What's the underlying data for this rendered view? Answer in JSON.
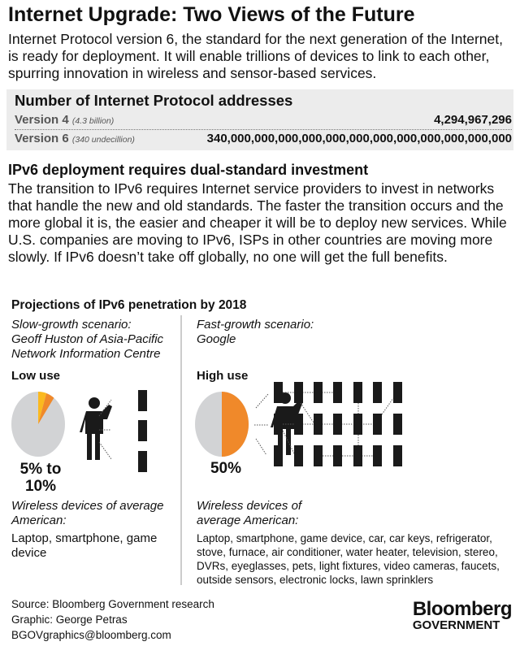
{
  "title": "Internet Upgrade: Two Views of the Future",
  "intro": "Internet Protocol version 6, the standard for the next generation of the Internet, is ready for deployment. It will enable trillions of devices to link to each other, spurring innovation in wireless and sensor-based services.",
  "addresses": {
    "heading": "Number of Internet Protocol addresses",
    "rows": [
      {
        "label": "Version 4",
        "note": "(4.3 billion)",
        "value": "4,294,967,296"
      },
      {
        "label": "Version 6",
        "note": "(340 undecillion)",
        "value": "340,000,000,000,000,000,000,000,000,000,000,000,000"
      }
    ]
  },
  "section": {
    "heading": "IPv6 deployment requires dual-standard investment",
    "body": "The transition to IPv6 requires Internet service providers to invest in networks that handle the new and old standards. The faster the transition occurs and the more global it is, the easier and cheaper it will be to deploy new services. While U.S. companies are moving to IPv6, ISPs in other countries are moving more slowly. If IPv6 doesn’t take off globally, no one will get the full benefits."
  },
  "projections": {
    "heading": "Projections of IPv6 penetration by 2018",
    "slow": {
      "scenario": "Slow-growth scenario:",
      "source": "Geoff Huston of Asia-Pacific Network Information Centre",
      "label": "Low use",
      "percent": "5% to 10%",
      "range": [
        5,
        10
      ],
      "devices_label": "Wireless devices of average American:",
      "devices": "Laptop, smartphone, game device",
      "device_count": 3
    },
    "fast": {
      "scenario": "Fast-growth scenario:",
      "source": "Google",
      "label": "High use",
      "percent": "50%",
      "value": 50,
      "devices_label": "Wireless devices of average American:",
      "devices": "Laptop, smartphone, game device, car, car keys, refrigerator, stove, furnace, air conditioner, water heater, television, stereo, DVRs, eyeglasses, pets, light fixtures, video cameras, faucets, outside sensors, electronic locks, lawn sprinklers",
      "device_count": 21
    }
  },
  "colors": {
    "orange": "#f0892a",
    "yellow": "#fbb91f",
    "gray": "#d2d3d5",
    "box": "#ececec"
  },
  "footer": {
    "source": "Source: Bloomberg Government research",
    "graphic": "Graphic: George Petras",
    "email": "BGOVgraphics@bloomberg.com",
    "logo_top": "Bloomberg",
    "logo_bottom": "GOVERNMENT"
  }
}
